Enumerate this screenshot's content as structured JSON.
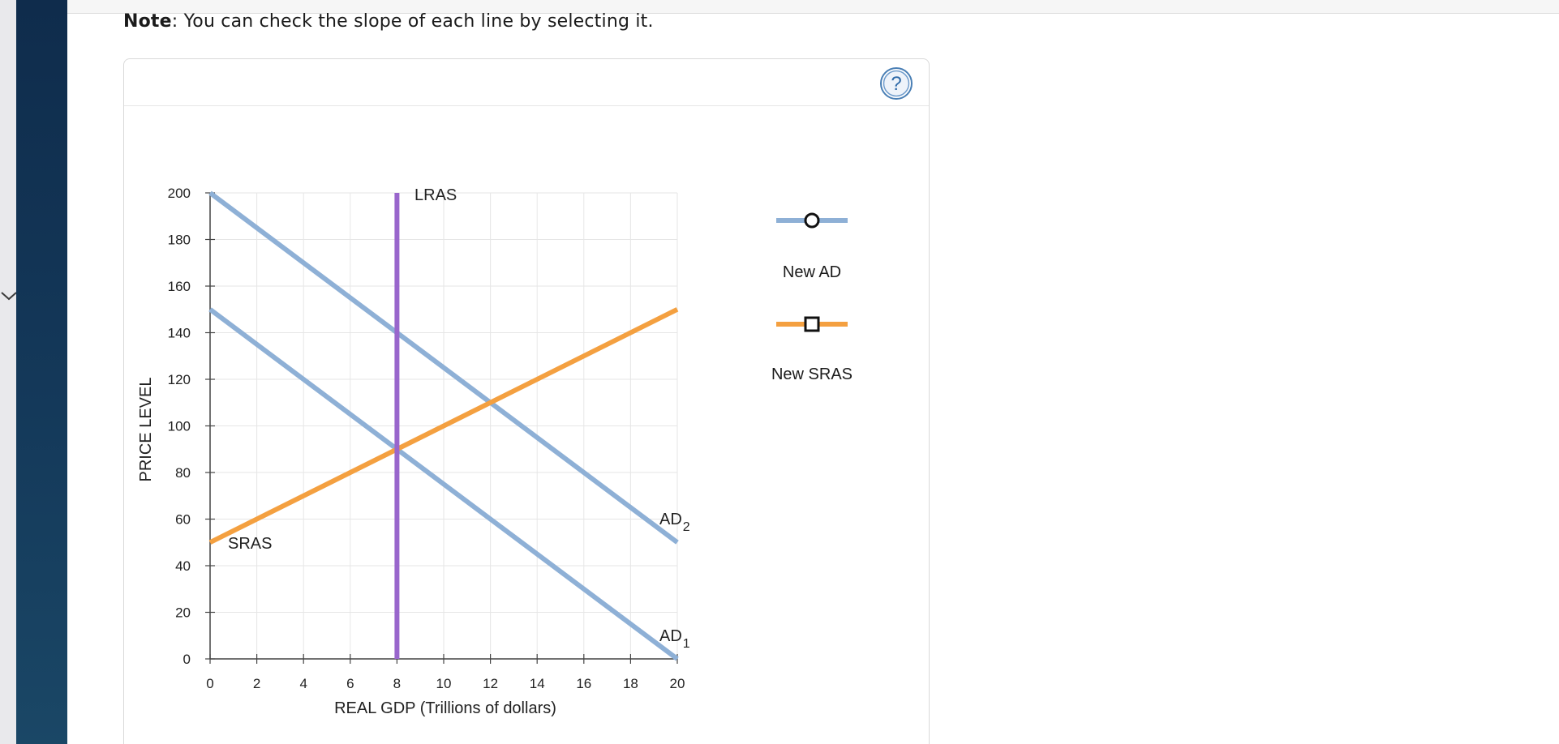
{
  "note": {
    "label": "Note",
    "text": ": You can check the slope of each line by selecting it."
  },
  "help": {
    "glyph": "?",
    "color": "#4a7fb5"
  },
  "legend": {
    "items": [
      {
        "label": "New AD",
        "color": "#8eb0d6",
        "marker": "circle"
      },
      {
        "label": "New SRAS",
        "color": "#f4a040",
        "marker": "square"
      }
    ]
  },
  "chart_data": {
    "type": "line",
    "xlabel": "REAL GDP (Trillions of dollars)",
    "ylabel": "PRICE LEVEL",
    "xlim": [
      0,
      20
    ],
    "ylim": [
      0,
      200
    ],
    "xticks": [
      0,
      2,
      4,
      6,
      8,
      10,
      12,
      14,
      16,
      18,
      20
    ],
    "yticks": [
      0,
      20,
      40,
      60,
      80,
      100,
      120,
      140,
      160,
      180,
      200
    ],
    "grid": true,
    "legend_position": "right",
    "series": [
      {
        "name": "AD",
        "sub": "2",
        "color": "#8eb0d6",
        "points": [
          [
            0,
            200
          ],
          [
            20,
            50
          ]
        ]
      },
      {
        "name": "AD",
        "sub": "1",
        "color": "#8eb0d6",
        "points": [
          [
            0,
            150
          ],
          [
            20,
            0
          ]
        ]
      },
      {
        "name": "SRAS",
        "sub": "",
        "color": "#f4a040",
        "points": [
          [
            0,
            50
          ],
          [
            20,
            150
          ]
        ]
      },
      {
        "name": "LRAS",
        "sub": "",
        "color": "#9966cc",
        "points": [
          [
            8,
            0
          ],
          [
            8,
            200
          ]
        ]
      }
    ]
  }
}
